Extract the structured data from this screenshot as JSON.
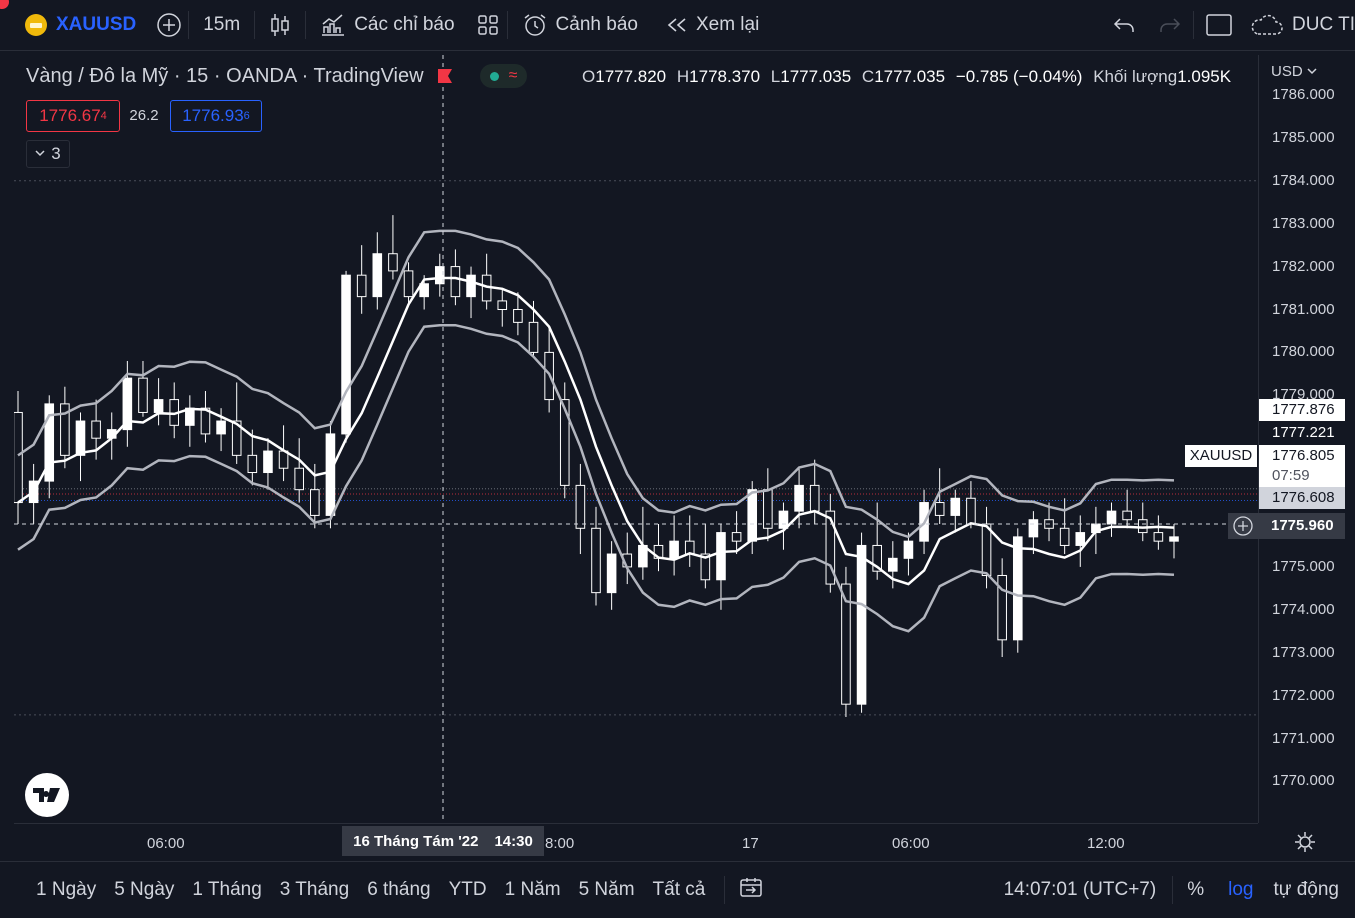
{
  "toolbar": {
    "symbol": "XAUUSD",
    "interval": "15m",
    "indicators_label": "Các chỉ báo",
    "alert_label": "Cảnh báo",
    "replay_label": "Xem lại",
    "account": "DUC TI"
  },
  "legend": {
    "title": "Vàng / Đô la Mỹ · 15 · OANDA · TradingView",
    "open": "1777.820",
    "high": "1778.370",
    "low": "1777.035",
    "close": "1777.035",
    "change": "−0.785 (−0.04%)",
    "volume_label": "Khối lượng",
    "volume": "1.095K",
    "o_label": "O",
    "h_label": "H",
    "l_label": "L",
    "c_label": "C"
  },
  "quote": {
    "sell": "1776.67",
    "sell_sup": "4",
    "spread": "26.2",
    "buy": "1776.93",
    "buy_sup": "6",
    "indicators_count": "3"
  },
  "axis": {
    "currency": "USD",
    "ticks": [
      "1786.000",
      "1785.000",
      "1784.000",
      "1783.000",
      "1782.000",
      "1781.000",
      "1780.000",
      "1779.000",
      "1775.000",
      "1774.000",
      "1773.000",
      "1772.000",
      "1771.000",
      "1770.000"
    ],
    "time_ticks": [
      "06:00",
      "8:00",
      "17",
      "06:00",
      "12:00"
    ],
    "crosshair_date": "16 Tháng Tám '22",
    "crosshair_time": "14:30"
  },
  "price_labels": {
    "upper": "1777.876",
    "mid": "1777.221",
    "symbol_tag": "XAUUSD",
    "last": "1776.805",
    "countdown": "07:59",
    "lower": "1776.608",
    "crosshair": "1775.960"
  },
  "bottom": {
    "ranges": [
      "1 Ngày",
      "5 Ngày",
      "1 Tháng",
      "3 Tháng",
      "6 tháng",
      "YTD",
      "1 Năm",
      "5 Năm",
      "Tất cả"
    ],
    "clock": "14:07:01 (UTC+7)",
    "percent": "%",
    "log": "log",
    "auto": "tự động"
  },
  "colors": {
    "up": "#ffffff",
    "down": "#ffffff",
    "bg": "#131722",
    "accent": "#2962ff",
    "red": "#f23645"
  },
  "chart_data": {
    "type": "candlestick",
    "y_range": [
      1769.5,
      1786.3
    ],
    "candles": [
      [
        1778.6,
        1779.1,
        1776.0,
        1776.5
      ],
      [
        1776.5,
        1777.4,
        1776.0,
        1777.0
      ],
      [
        1777.0,
        1779.0,
        1776.6,
        1778.8
      ],
      [
        1778.8,
        1779.2,
        1777.3,
        1777.6
      ],
      [
        1777.6,
        1778.6,
        1777.0,
        1778.4
      ],
      [
        1778.4,
        1778.9,
        1777.5,
        1778.0
      ],
      [
        1778.0,
        1778.6,
        1777.5,
        1778.2
      ],
      [
        1778.2,
        1779.8,
        1777.8,
        1779.4
      ],
      [
        1779.4,
        1779.8,
        1778.5,
        1778.6
      ],
      [
        1778.6,
        1779.4,
        1778.3,
        1778.9
      ],
      [
        1778.9,
        1779.3,
        1778.0,
        1778.3
      ],
      [
        1778.3,
        1779.0,
        1777.8,
        1778.7
      ],
      [
        1778.7,
        1779.1,
        1777.9,
        1778.1
      ],
      [
        1778.1,
        1778.7,
        1777.7,
        1778.4
      ],
      [
        1778.4,
        1779.3,
        1777.4,
        1777.6
      ],
      [
        1777.6,
        1778.2,
        1776.9,
        1777.2
      ],
      [
        1777.2,
        1778.0,
        1776.8,
        1777.7
      ],
      [
        1777.7,
        1778.3,
        1777.0,
        1777.3
      ],
      [
        1777.3,
        1778.0,
        1776.5,
        1776.8
      ],
      [
        1776.8,
        1777.4,
        1775.9,
        1776.2
      ],
      [
        1776.2,
        1778.4,
        1775.9,
        1778.1
      ],
      [
        1778.1,
        1781.9,
        1777.9,
        1781.8
      ],
      [
        1781.8,
        1782.5,
        1780.9,
        1781.3
      ],
      [
        1781.3,
        1782.8,
        1781.0,
        1782.3
      ],
      [
        1782.3,
        1783.2,
        1781.7,
        1781.9
      ],
      [
        1781.9,
        1782.1,
        1781.1,
        1781.3
      ],
      [
        1781.3,
        1781.8,
        1781.0,
        1781.6
      ],
      [
        1781.6,
        1782.3,
        1781.3,
        1782.0
      ],
      [
        1782.0,
        1782.4,
        1781.1,
        1781.3
      ],
      [
        1781.3,
        1782.0,
        1780.8,
        1781.8
      ],
      [
        1781.8,
        1782.3,
        1781.0,
        1781.2
      ],
      [
        1781.2,
        1781.5,
        1780.6,
        1781.0
      ],
      [
        1781.0,
        1781.4,
        1780.4,
        1780.7
      ],
      [
        1780.7,
        1781.2,
        1779.9,
        1780.0
      ],
      [
        1780.0,
        1780.6,
        1778.6,
        1778.9
      ],
      [
        1778.9,
        1779.3,
        1776.6,
        1776.9
      ],
      [
        1776.9,
        1777.4,
        1775.3,
        1775.9
      ],
      [
        1775.9,
        1776.4,
        1774.1,
        1774.4
      ],
      [
        1774.4,
        1775.6,
        1774.0,
        1775.3
      ],
      [
        1775.3,
        1775.8,
        1774.6,
        1775.0
      ],
      [
        1775.0,
        1776.4,
        1774.7,
        1775.5
      ],
      [
        1775.5,
        1776.0,
        1774.9,
        1775.2
      ],
      [
        1775.2,
        1776.2,
        1774.8,
        1775.6
      ],
      [
        1775.6,
        1776.2,
        1775.0,
        1775.3
      ],
      [
        1775.3,
        1776.0,
        1774.5,
        1774.7
      ],
      [
        1774.7,
        1776.0,
        1774.0,
        1775.8
      ],
      [
        1775.8,
        1776.3,
        1775.3,
        1775.6
      ],
      [
        1775.6,
        1777.0,
        1775.3,
        1776.8
      ],
      [
        1776.8,
        1777.3,
        1775.6,
        1775.9
      ],
      [
        1775.9,
        1776.5,
        1775.4,
        1776.3
      ],
      [
        1776.3,
        1777.3,
        1775.9,
        1776.9
      ],
      [
        1776.9,
        1777.5,
        1776.0,
        1776.3
      ],
      [
        1776.3,
        1776.7,
        1774.4,
        1774.6
      ],
      [
        1774.6,
        1775.0,
        1771.5,
        1771.8
      ],
      [
        1771.8,
        1775.8,
        1771.6,
        1775.5
      ],
      [
        1775.5,
        1776.5,
        1774.7,
        1774.9
      ],
      [
        1774.9,
        1775.6,
        1774.5,
        1775.2
      ],
      [
        1775.2,
        1775.8,
        1774.8,
        1775.6
      ],
      [
        1775.6,
        1776.8,
        1775.3,
        1776.5
      ],
      [
        1776.5,
        1777.3,
        1776.0,
        1776.2
      ],
      [
        1776.2,
        1776.8,
        1775.8,
        1776.6
      ],
      [
        1776.6,
        1777.0,
        1775.9,
        1776.0
      ],
      [
        1776.0,
        1776.4,
        1774.5,
        1774.8
      ],
      [
        1774.8,
        1775.2,
        1772.9,
        1773.3
      ],
      [
        1773.3,
        1775.9,
        1773.0,
        1775.7
      ],
      [
        1775.7,
        1776.3,
        1775.3,
        1776.1
      ],
      [
        1776.1,
        1776.5,
        1775.6,
        1775.9
      ],
      [
        1775.9,
        1776.6,
        1775.3,
        1775.5
      ],
      [
        1775.5,
        1776.2,
        1775.0,
        1775.8
      ],
      [
        1775.8,
        1776.4,
        1775.3,
        1776.0
      ],
      [
        1776.0,
        1776.5,
        1775.7,
        1776.3
      ],
      [
        1776.3,
        1776.8,
        1775.9,
        1776.1
      ],
      [
        1776.1,
        1776.5,
        1775.6,
        1775.8
      ],
      [
        1775.8,
        1776.2,
        1775.4,
        1775.6
      ],
      [
        1775.6,
        1776.0,
        1775.2,
        1775.7
      ]
    ]
  }
}
